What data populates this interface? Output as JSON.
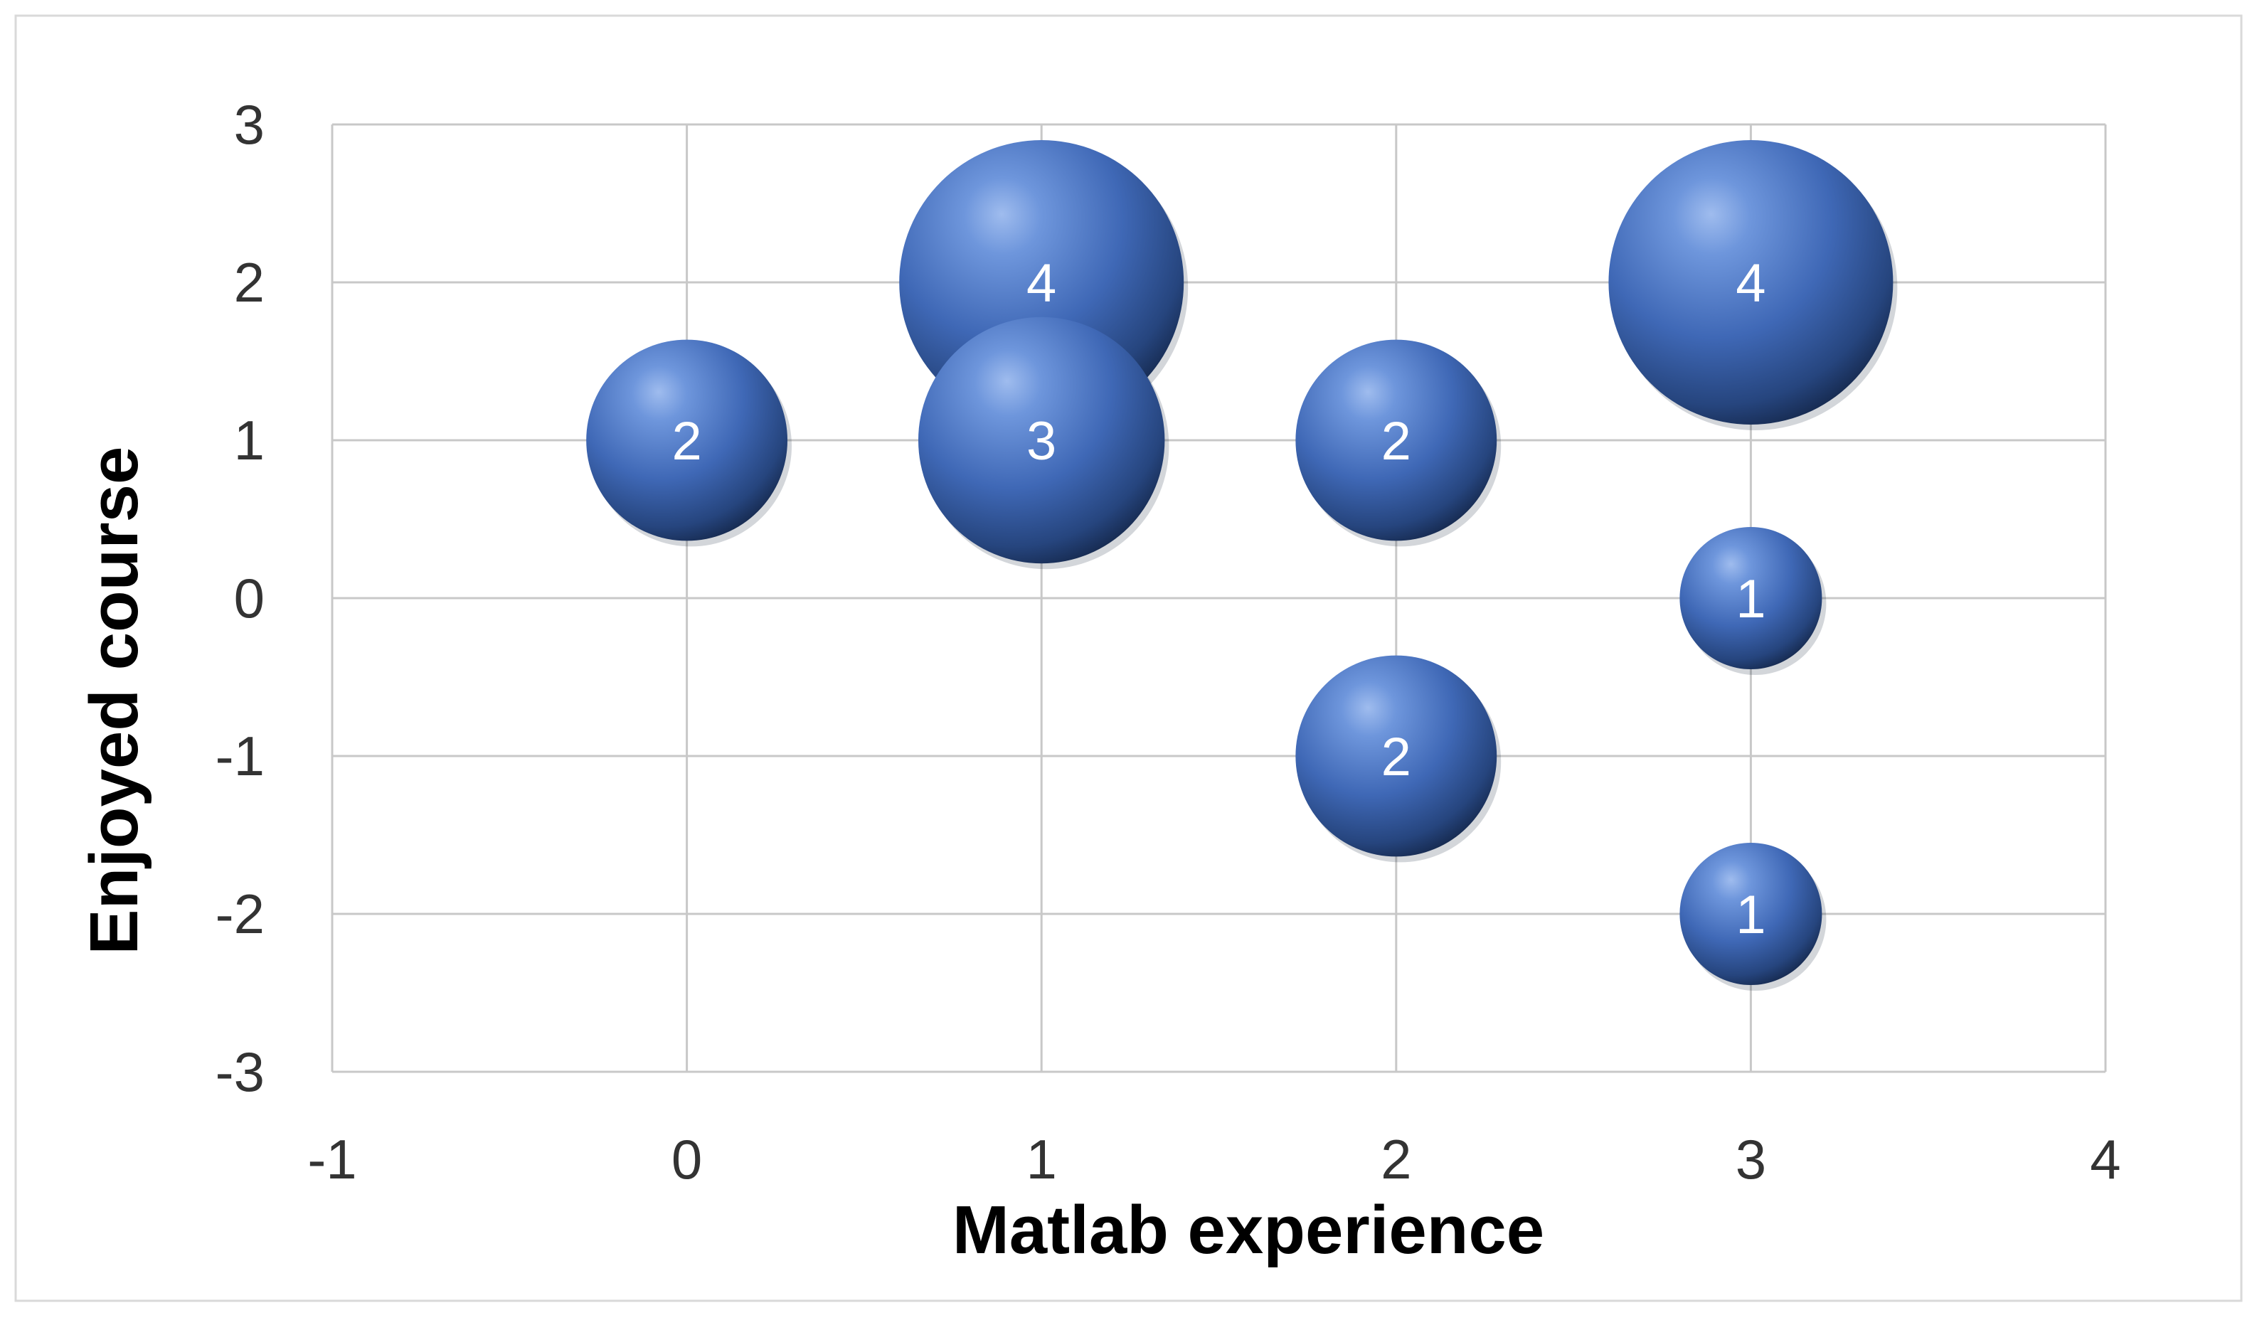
{
  "chart_data": {
    "type": "bubble",
    "title": "",
    "xlabel": "Matlab experience",
    "ylabel": "Enjoyed course",
    "xlim": [
      -1,
      4
    ],
    "ylim": [
      -3,
      3
    ],
    "xticks": [
      -1,
      0,
      1,
      2,
      3,
      4
    ],
    "yticks": [
      -3,
      -2,
      -1,
      0,
      1,
      2,
      3
    ],
    "grid": true,
    "legend": "none",
    "bubble_color": "#4a76c4",
    "points": [
      {
        "x": 0,
        "y": 1,
        "size": 2,
        "label": "2"
      },
      {
        "x": 1,
        "y": 2,
        "size": 4,
        "label": "4"
      },
      {
        "x": 1,
        "y": 1,
        "size": 3,
        "label": "3"
      },
      {
        "x": 2,
        "y": 1,
        "size": 2,
        "label": "2"
      },
      {
        "x": 2,
        "y": -1,
        "size": 2,
        "label": "2"
      },
      {
        "x": 3,
        "y": 2,
        "size": 4,
        "label": "4"
      },
      {
        "x": 3,
        "y": 0,
        "size": 1,
        "label": "1"
      },
      {
        "x": 3,
        "y": -2,
        "size": 1,
        "label": "1"
      }
    ]
  }
}
